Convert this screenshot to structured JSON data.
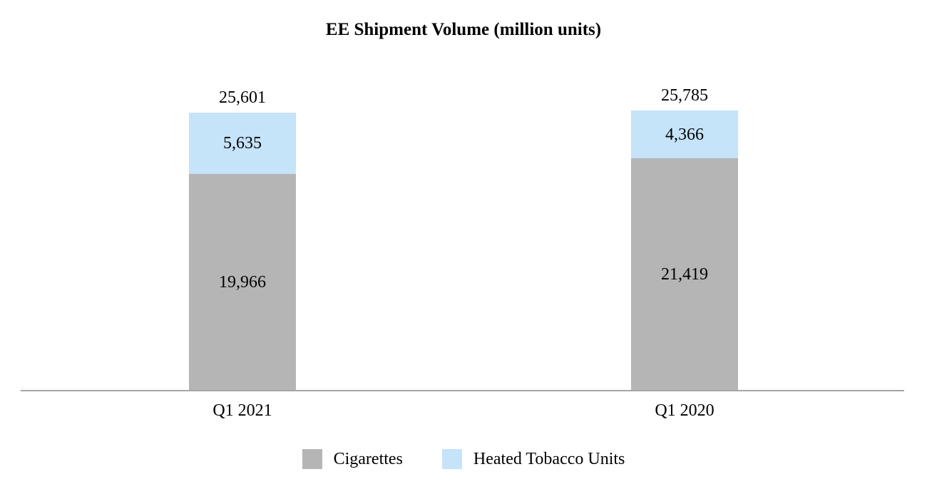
{
  "chart_data": {
    "type": "bar",
    "stacked": true,
    "title": "EE Shipment Volume (million units)",
    "categories": [
      "Q1 2021",
      "Q1 2020"
    ],
    "series": [
      {
        "name": "Cigarettes",
        "color": "#B5B5B5",
        "values": [
          19966,
          21419
        ],
        "values_display": [
          "19,966",
          "21,419"
        ]
      },
      {
        "name": "Heated Tobacco Units",
        "color": "#C5E3F9",
        "values": [
          5635,
          4366
        ],
        "values_display": [
          "5,635",
          "4,366"
        ]
      }
    ],
    "totals": [
      25601,
      25785
    ],
    "totals_display": [
      "25,601",
      "25,785"
    ],
    "ylim": [
      0,
      25785
    ],
    "grid": false,
    "legend_position": "bottom",
    "axis_line_color": "#A6A6A6",
    "text_color": "#000000",
    "background": "#FFFFFF"
  }
}
